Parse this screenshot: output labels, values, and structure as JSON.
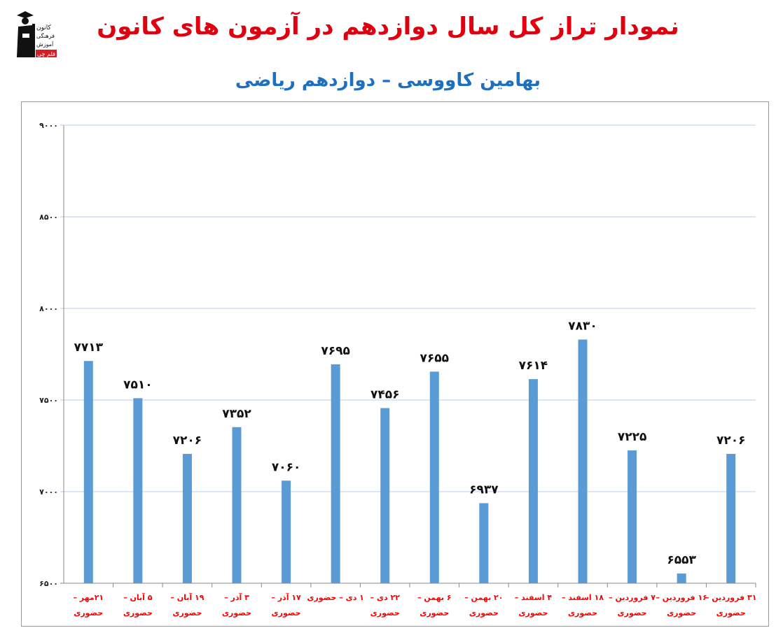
{
  "logo": {
    "lines": [
      "کانون",
      "فرهنگی",
      "آموزش",
      "قلم چی"
    ]
  },
  "chart_data": {
    "type": "bar",
    "title": "نمودار تراز کل سال دوازدهم در آزمون های کانون",
    "subtitle": "بهامین کاووسی – دوازدهم ریاضی",
    "categories": [
      [
        "۲۱مهر –",
        "حضوری"
      ],
      [
        "۵ آبان –",
        "حضوری"
      ],
      [
        "۱۹ آبان –",
        "حضوری"
      ],
      [
        "۳ آذر –",
        "حضوری"
      ],
      [
        "۱۷ آذر –",
        "حضوری"
      ],
      [
        "۱ دی – حضوری",
        ""
      ],
      [
        "۲۲ دی –",
        "حضوری"
      ],
      [
        "۶ بهمن –",
        "حضوری"
      ],
      [
        "۲۰ بهمن –",
        "حضوری"
      ],
      [
        "۴ اسفند –",
        "حضوری"
      ],
      [
        "۱۸ اسفند –",
        "حضوری"
      ],
      [
        "۷ فروردین –",
        "حضوری"
      ],
      [
        "۱۶ فروردین –",
        "حضوری"
      ],
      [
        "۳۱ فروردین –",
        "حضوری"
      ]
    ],
    "values": [
      7713,
      7510,
      7206,
      7352,
      7060,
      7695,
      7456,
      7655,
      6937,
      7614,
      7830,
      7225,
      6553,
      7206
    ],
    "ylim": [
      6500,
      9000
    ],
    "yticks": [
      6500,
      7000,
      7500,
      8000,
      8500,
      9000
    ],
    "grid": true,
    "legend": "none",
    "colors": {
      "bar": "#5b9bd5",
      "grid": "#b9cde8",
      "title": "#e0000f",
      "subtitle": "#1f6fc0",
      "category_label": "#ff0000"
    }
  }
}
